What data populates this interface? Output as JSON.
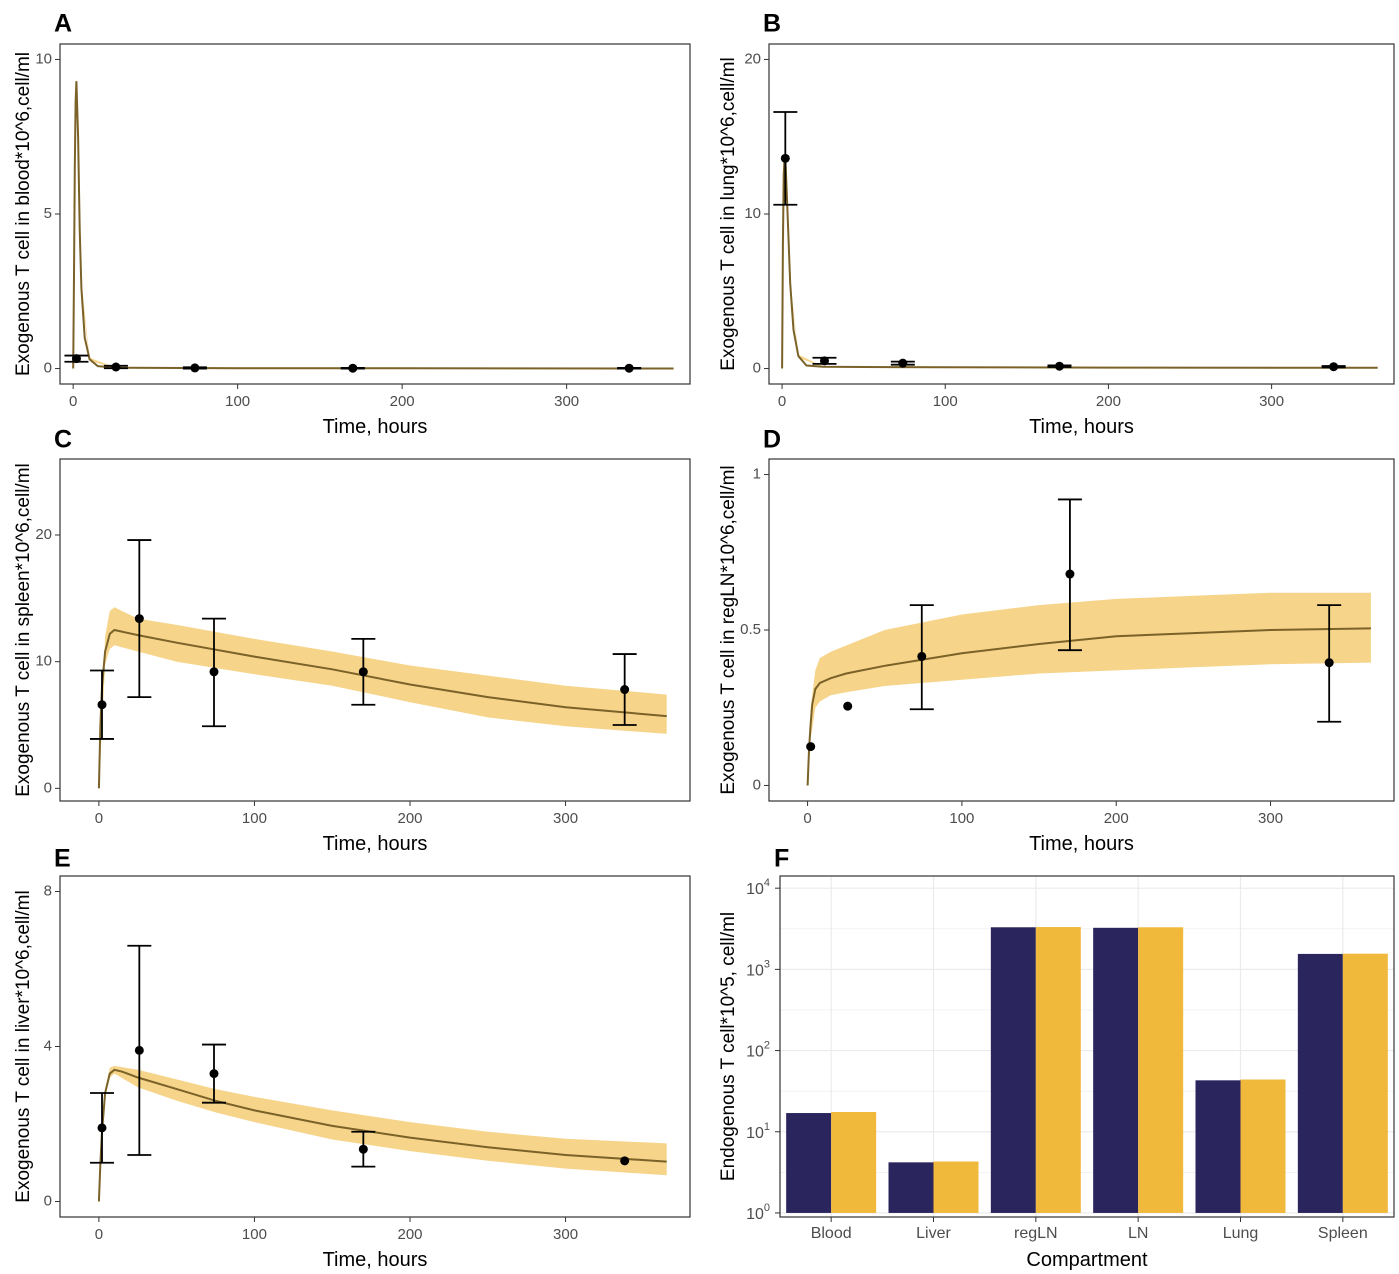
{
  "colors": {
    "band": "#f6d48a",
    "median_line": "#7a6228",
    "navy": "#2b255e",
    "gold": "#f1b93c",
    "grid": "#ebebeb",
    "frame": "#333333"
  },
  "chart_data": [
    {
      "panel": "A",
      "type": "line",
      "xlabel": "Time, hours",
      "ylabel": "Exogenous T cell in blood*10^6,cell/ml",
      "xlim": [
        -8,
        375
      ],
      "ylim": [
        -0.5,
        10.5
      ],
      "xticks": [
        0,
        100,
        200,
        300
      ],
      "yticks": [
        0,
        5,
        10
      ],
      "curve": [
        [
          0,
          0
        ],
        [
          0.5,
          3.0
        ],
        [
          1,
          6.5
        ],
        [
          1.5,
          8.6
        ],
        [
          2,
          9.3
        ],
        [
          3,
          7.5
        ],
        [
          4,
          4.5
        ],
        [
          5,
          2.6
        ],
        [
          7,
          1.0
        ],
        [
          10,
          0.3
        ],
        [
          15,
          0.08
        ],
        [
          25,
          0.03
        ],
        [
          50,
          0.02
        ],
        [
          100,
          0.01
        ],
        [
          200,
          0.01
        ],
        [
          365,
          0.0
        ]
      ],
      "band": [
        [
          0,
          0,
          0
        ],
        [
          2,
          9.0,
          9.4
        ],
        [
          5,
          2.5,
          2.8
        ],
        [
          10,
          0.25,
          0.35
        ],
        [
          25,
          0.02,
          0.05
        ],
        [
          365,
          0.0,
          0.02
        ]
      ],
      "points": [
        {
          "x": 2,
          "y": 0.32,
          "lo": 0.22,
          "hi": 0.42
        },
        {
          "x": 26,
          "y": 0.05,
          "lo": 0.01,
          "hi": 0.09
        },
        {
          "x": 74,
          "y": 0.02,
          "lo": 0.0,
          "hi": 0.04
        },
        {
          "x": 170,
          "y": 0.01,
          "lo": 0.0,
          "hi": 0.02
        },
        {
          "x": 338,
          "y": 0.01,
          "lo": 0.0,
          "hi": 0.02
        }
      ]
    },
    {
      "panel": "B",
      "type": "line",
      "xlabel": "Time, hours",
      "ylabel": "Exogenous T cell in lung*10^6,cell/ml",
      "xlim": [
        -8,
        375
      ],
      "ylim": [
        -1.0,
        21.0
      ],
      "xticks": [
        0,
        100,
        200,
        300
      ],
      "yticks": [
        0,
        10,
        20
      ],
      "curve": [
        [
          0,
          0
        ],
        [
          0.5,
          8
        ],
        [
          1,
          12.5
        ],
        [
          1.5,
          13.6
        ],
        [
          2,
          13.7
        ],
        [
          3,
          11
        ],
        [
          5,
          5.5
        ],
        [
          7,
          2.5
        ],
        [
          10,
          0.8
        ],
        [
          15,
          0.2
        ],
        [
          25,
          0.12
        ],
        [
          50,
          0.1
        ],
        [
          100,
          0.08
        ],
        [
          200,
          0.06
        ],
        [
          365,
          0.05
        ]
      ],
      "band": [
        [
          0,
          0,
          0
        ],
        [
          2,
          13.5,
          13.9
        ],
        [
          5,
          5.3,
          5.7
        ],
        [
          10,
          0.7,
          0.9
        ],
        [
          25,
          0.1,
          0.15
        ],
        [
          365,
          0.04,
          0.07
        ]
      ],
      "points": [
        {
          "x": 2,
          "y": 13.6,
          "lo": 10.6,
          "hi": 16.6
        },
        {
          "x": 26,
          "y": 0.5,
          "lo": 0.3,
          "hi": 0.7
        },
        {
          "x": 74,
          "y": 0.35,
          "lo": 0.25,
          "hi": 0.45
        },
        {
          "x": 170,
          "y": 0.15,
          "lo": 0.1,
          "hi": 0.2
        },
        {
          "x": 338,
          "y": 0.12,
          "lo": 0.08,
          "hi": 0.16
        }
      ]
    },
    {
      "panel": "C",
      "type": "line",
      "xlabel": "Time, hours",
      "ylabel": "Exogenous T cell in spleen*10^6,cell/ml",
      "xlim": [
        -25,
        380
      ],
      "ylim": [
        -1.0,
        26.0
      ],
      "xticks": [
        0,
        100,
        200,
        300
      ],
      "yticks": [
        0,
        10,
        20
      ],
      "curve": [
        [
          0,
          0
        ],
        [
          1,
          5
        ],
        [
          2,
          8
        ],
        [
          4,
          10.8
        ],
        [
          7,
          12.2
        ],
        [
          10,
          12.5
        ],
        [
          25,
          12.1
        ],
        [
          50,
          11.5
        ],
        [
          100,
          10.4
        ],
        [
          150,
          9.4
        ],
        [
          200,
          8.2
        ],
        [
          250,
          7.2
        ],
        [
          300,
          6.4
        ],
        [
          365,
          5.7
        ]
      ],
      "band": [
        [
          0,
          0,
          0
        ],
        [
          4,
          9.8,
          12.0
        ],
        [
          7,
          11.0,
          14.0
        ],
        [
          10,
          11.3,
          14.3
        ],
        [
          25,
          10.8,
          13.4
        ],
        [
          50,
          10.0,
          12.9
        ],
        [
          100,
          9.0,
          11.8
        ],
        [
          150,
          8.1,
          10.8
        ],
        [
          200,
          6.8,
          9.7
        ],
        [
          250,
          5.6,
          8.9
        ],
        [
          300,
          4.9,
          8.1
        ],
        [
          365,
          4.3,
          7.4
        ]
      ],
      "points": [
        {
          "x": 2,
          "y": 6.6,
          "lo": 3.9,
          "hi": 9.3
        },
        {
          "x": 26,
          "y": 13.4,
          "lo": 7.2,
          "hi": 19.6
        },
        {
          "x": 74,
          "y": 9.2,
          "lo": 4.9,
          "hi": 13.4
        },
        {
          "x": 170,
          "y": 9.2,
          "lo": 6.6,
          "hi": 11.8
        },
        {
          "x": 338,
          "y": 7.8,
          "lo": 5.0,
          "hi": 10.6
        }
      ]
    },
    {
      "panel": "D",
      "type": "line",
      "xlabel": "Time, hours",
      "ylabel": "Exogenous T cell in regLN*10^6,cell/ml",
      "xlim": [
        -25,
        380
      ],
      "ylim": [
        -0.05,
        1.05
      ],
      "xticks": [
        0,
        100,
        200,
        300
      ],
      "yticks": [
        0.0,
        0.5,
        1.0
      ],
      "ytick_labels": [
        "0.0",
        "0.5",
        "1.0"
      ],
      "curve": [
        [
          0,
          0
        ],
        [
          1,
          0.12
        ],
        [
          2,
          0.2
        ],
        [
          3,
          0.26
        ],
        [
          5,
          0.31
        ],
        [
          8,
          0.33
        ],
        [
          15,
          0.345
        ],
        [
          25,
          0.36
        ],
        [
          50,
          0.385
        ],
        [
          100,
          0.425
        ],
        [
          150,
          0.455
        ],
        [
          200,
          0.48
        ],
        [
          250,
          0.49
        ],
        [
          300,
          0.5
        ],
        [
          365,
          0.505
        ]
      ],
      "band": [
        [
          0,
          0,
          0
        ],
        [
          2,
          0.15,
          0.25
        ],
        [
          5,
          0.25,
          0.37
        ],
        [
          8,
          0.27,
          0.41
        ],
        [
          15,
          0.29,
          0.43
        ],
        [
          25,
          0.3,
          0.45
        ],
        [
          50,
          0.32,
          0.5
        ],
        [
          100,
          0.34,
          0.55
        ],
        [
          150,
          0.36,
          0.58
        ],
        [
          200,
          0.37,
          0.6
        ],
        [
          250,
          0.38,
          0.61
        ],
        [
          300,
          0.39,
          0.62
        ],
        [
          365,
          0.395,
          0.62
        ]
      ],
      "points": [
        {
          "x": 2,
          "y": 0.125
        },
        {
          "x": 26,
          "y": 0.255
        },
        {
          "x": 74,
          "y": 0.415,
          "lo": 0.245,
          "hi": 0.58
        },
        {
          "x": 170,
          "y": 0.68,
          "lo": 0.435,
          "hi": 0.92
        },
        {
          "x": 338,
          "y": 0.395,
          "lo": 0.205,
          "hi": 0.58
        }
      ]
    },
    {
      "panel": "E",
      "type": "line",
      "xlabel": "Time, hours",
      "ylabel": "Exogenous T cell in liver*10^6,cell/ml",
      "xlim": [
        -25,
        380
      ],
      "ylim": [
        -0.4,
        8.4
      ],
      "xticks": [
        0,
        100,
        200,
        300
      ],
      "yticks": [
        0,
        4,
        8
      ],
      "curve": [
        [
          0,
          0
        ],
        [
          1,
          1.0
        ],
        [
          2,
          1.8
        ],
        [
          4,
          2.8
        ],
        [
          7,
          3.3
        ],
        [
          10,
          3.4
        ],
        [
          15,
          3.35
        ],
        [
          25,
          3.2
        ],
        [
          50,
          2.9
        ],
        [
          75,
          2.6
        ],
        [
          100,
          2.35
        ],
        [
          150,
          1.95
        ],
        [
          200,
          1.65
        ],
        [
          250,
          1.4
        ],
        [
          300,
          1.2
        ],
        [
          365,
          1.03
        ]
      ],
      "band": [
        [
          0,
          0,
          0
        ],
        [
          4,
          2.7,
          2.9
        ],
        [
          7,
          3.2,
          3.45
        ],
        [
          10,
          3.3,
          3.5
        ],
        [
          25,
          2.95,
          3.4
        ],
        [
          50,
          2.6,
          3.15
        ],
        [
          75,
          2.3,
          2.9
        ],
        [
          100,
          2.05,
          2.7
        ],
        [
          150,
          1.6,
          2.35
        ],
        [
          200,
          1.3,
          2.05
        ],
        [
          250,
          1.05,
          1.8
        ],
        [
          300,
          0.85,
          1.62
        ],
        [
          365,
          0.68,
          1.5
        ]
      ],
      "points": [
        {
          "x": 2,
          "y": 1.9,
          "lo": 1.0,
          "hi": 2.8
        },
        {
          "x": 26,
          "y": 3.9,
          "lo": 1.2,
          "hi": 6.6
        },
        {
          "x": 74,
          "y": 3.3,
          "lo": 2.55,
          "hi": 4.05
        },
        {
          "x": 170,
          "y": 1.35,
          "lo": 0.9,
          "hi": 1.8
        },
        {
          "x": 338,
          "y": 1.05
        }
      ]
    },
    {
      "panel": "F",
      "type": "bar",
      "xlabel": "Compartment",
      "ylabel": "Endogenous T cell*10^5, cell/ml",
      "yscale": "log10",
      "ylim_log": [
        -0.05,
        4.15
      ],
      "ytick_base": "10",
      "ytick_exponents": [
        "0",
        "1",
        "2",
        "3",
        "4"
      ],
      "categories": [
        "Blood",
        "Liver",
        "regLN",
        "LN",
        "Lung",
        "Spleen"
      ],
      "series": [
        {
          "name": "navy",
          "color": "#2b255e",
          "values": [
            17,
            4.2,
            3300,
            3250,
            43,
            1550
          ]
        },
        {
          "name": "gold",
          "color": "#f1b93c",
          "values": [
            17.5,
            4.3,
            3320,
            3300,
            44,
            1560
          ]
        }
      ]
    }
  ]
}
